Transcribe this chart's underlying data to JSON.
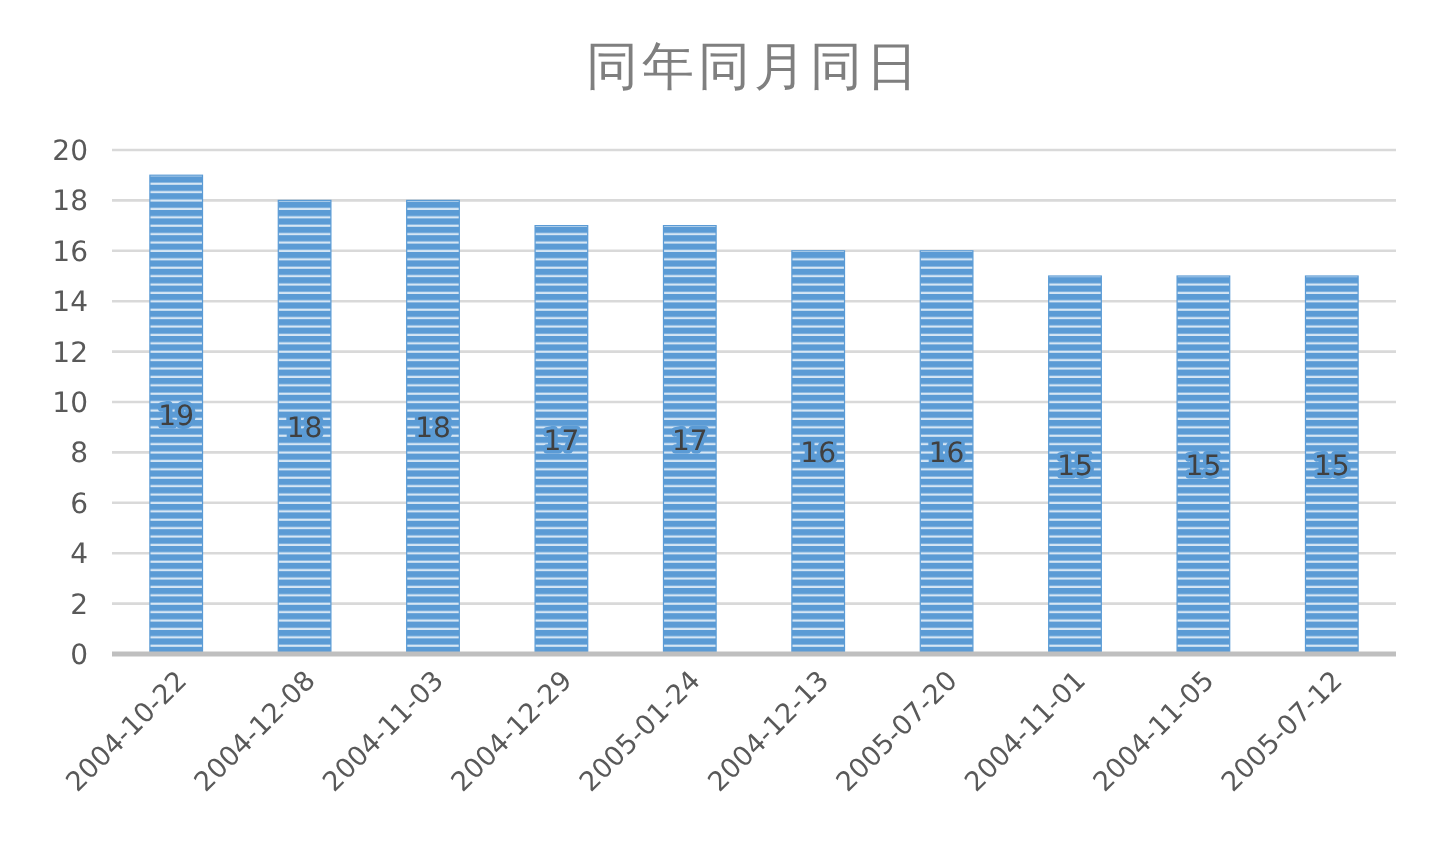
{
  "chart_data": {
    "type": "bar",
    "title": "同年同月同日",
    "categories": [
      "2004-10-22",
      "2004-12-08",
      "2004-11-03",
      "2004-12-29",
      "2005-01-24",
      "2004-12-13",
      "2005-07-20",
      "2004-11-01",
      "2004-11-05",
      "2005-07-12"
    ],
    "values": [
      19,
      18,
      18,
      17,
      17,
      16,
      16,
      15,
      15,
      15
    ],
    "color": "#5b9bd5",
    "ylim": [
      0,
      20
    ],
    "yticks": [
      0,
      2,
      4,
      6,
      8,
      10,
      12,
      14,
      16,
      18,
      20
    ],
    "grid": "y",
    "data_labels": true
  }
}
